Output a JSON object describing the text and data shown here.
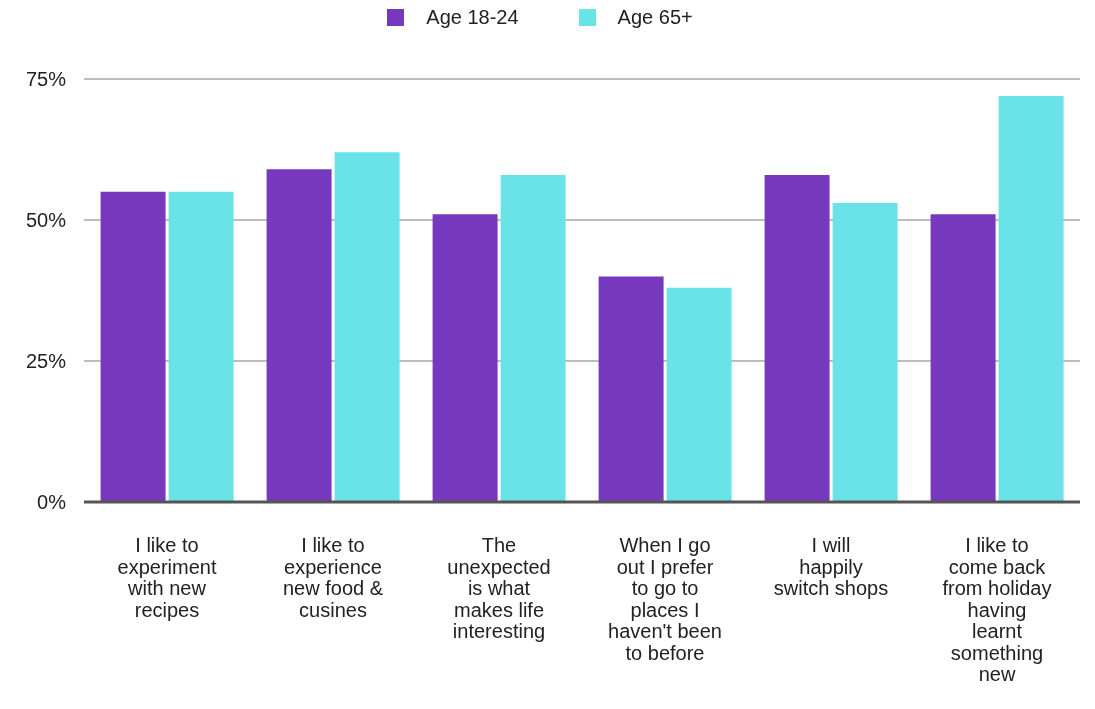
{
  "chart_data": {
    "type": "bar",
    "categories": [
      "I like to experiment with new recipes",
      "I like to experience new food & cusines",
      "The unexpected is what makes life interesting",
      "When I go out I prefer to go to places I haven't been to before",
      "I will happily switch shops",
      "I like to come back from holiday having learnt something new"
    ],
    "series": [
      {
        "name": "Age 18-24",
        "color": "#7639bd",
        "values": [
          55,
          59,
          51,
          40,
          58,
          51
        ]
      },
      {
        "name": "Age 65+",
        "color": "#6ae3e8",
        "values": [
          55,
          62,
          58,
          38,
          53,
          72
        ]
      }
    ],
    "ylim": [
      0,
      75
    ],
    "yticks": [
      {
        "value": 0,
        "label": "0%"
      },
      {
        "value": 25,
        "label": "25%"
      },
      {
        "value": 50,
        "label": "50%"
      },
      {
        "value": 75,
        "label": "75%"
      }
    ],
    "grid": "y",
    "legend": "top"
  }
}
